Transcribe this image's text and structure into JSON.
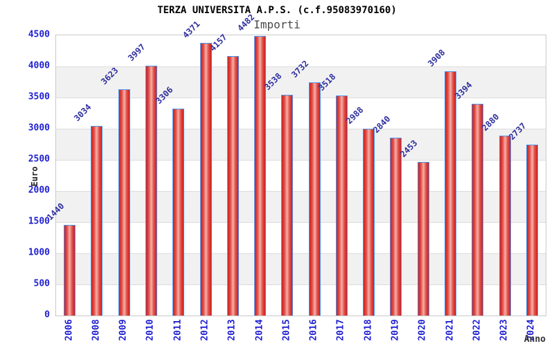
{
  "chart_data": {
    "type": "bar",
    "title": "TERZA UNIVERSITA A.P.S. (c.f.95083970160)",
    "series_name": "Importi",
    "xlabel": "Anno",
    "ylabel": "Euro",
    "categories": [
      "2006",
      "2008",
      "2009",
      "2010",
      "2011",
      "2012",
      "2013",
      "2014",
      "2015",
      "2016",
      "2017",
      "2018",
      "2019",
      "2020",
      "2021",
      "2022",
      "2023",
      "2024"
    ],
    "values": [
      1440,
      3034,
      3623,
      3997,
      3306,
      4371,
      4157,
      4482,
      3538,
      3732,
      3518,
      2988,
      2840,
      2453,
      3908,
      3394,
      2880,
      2737
    ],
    "ylim": [
      0,
      4500
    ],
    "yticks": [
      0,
      500,
      1000,
      1500,
      2000,
      2500,
      3000,
      3500,
      4000,
      4500
    ],
    "grid": true,
    "legend_position": "top-center",
    "colors": {
      "bar_edge": "#cc2020",
      "bar_mid": "#f6b0a8",
      "bar_border": "#4e94ec",
      "tick_label": "#1f1fd2",
      "value_label": "#2e2e9e",
      "band_gray": "#f1f1f1",
      "gridline": "#dcdcdc",
      "plot_border": "#c9c9c9",
      "title": "#000000",
      "subtitle": "#4a4a4a"
    }
  }
}
